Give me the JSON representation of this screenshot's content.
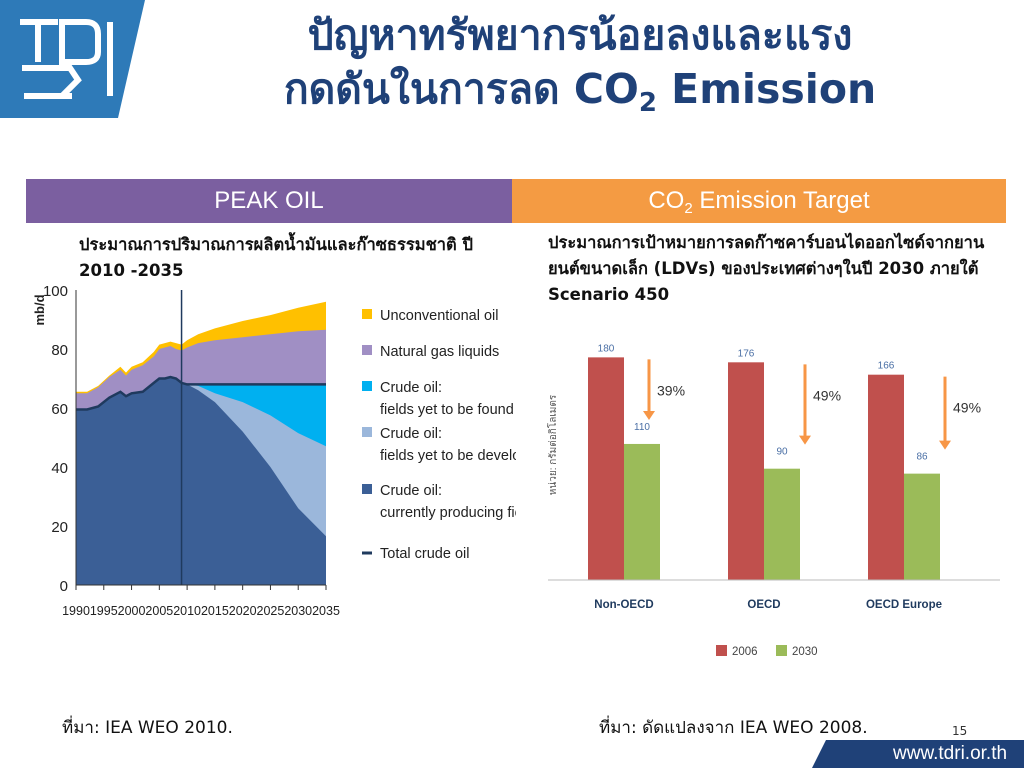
{
  "header": {
    "title_line1": "ปัญหาทรัพยากรน้อยลงและแรง",
    "title_line2_prefix": "กดดันในการลด CO",
    "title_line2_sub": "2",
    "title_line2_suffix": " Emission",
    "logo_text": "TDRI"
  },
  "panels": {
    "left": {
      "label": "PEAK OIL",
      "description": "ประมาณการปริมาณการผลิตน้ำมันและก๊าซธรรมชาติ ปี 2010 -2035",
      "source": "ที่มา: IEA WEO 2010."
    },
    "right": {
      "label_prefix": "CO",
      "label_sub": "2",
      "label_suffix": " Emission Target",
      "description": "ประมาณการเป้าหมายการลดก๊าซคาร์บอนไดออกไซด์จากยานยนต์ขนาดเล็ก (LDVs) ของประเทศต่างๆในปี 2030 ภายใต้ Scenario 450",
      "source": "ที่มา: ดัดแปลงจาก IEA WEO 2008."
    }
  },
  "footer": {
    "page_number": "15",
    "website": "www.tdri.or.th"
  },
  "colors": {
    "title": "#1f4178",
    "peak_oil_header": "#7b5fa0",
    "co2_header": "#f49b43",
    "unconventional": "#ffc000",
    "ngl": "#a08fc4",
    "yet_found": "#00b0f0",
    "yet_developed": "#9bb7db",
    "producing": "#3b5f96",
    "total": "#1f3a5e",
    "bar_2006": "#c0504d",
    "bar_2030": "#9bbb59",
    "arrow": "#f79646"
  },
  "chart_data": [
    {
      "type": "area",
      "ylabel": "mb/d",
      "ylim": [
        0,
        100
      ],
      "yticks": [
        "0",
        "20",
        "40",
        "60",
        "80",
        "100"
      ],
      "xticks": [
        "1990",
        "1995",
        "2000",
        "2005",
        "2010",
        "2015",
        "2020",
        "2025",
        "2030",
        "2035"
      ],
      "xlim": [
        1990,
        2035
      ],
      "x": [
        1990,
        1992,
        1994,
        1996,
        1998,
        1999,
        2000,
        2002,
        2004,
        2005,
        2006,
        2007,
        2008,
        2009,
        2010,
        2012,
        2015,
        2020,
        2025,
        2030,
        2035
      ],
      "series": [
        {
          "name": "Unconventional oil",
          "cumulative": [
            65.5,
            65.5,
            67.5,
            71,
            74,
            72,
            74,
            75.5,
            79,
            81.5,
            82,
            82.5,
            82,
            81.5,
            83,
            85,
            87,
            89.5,
            91.5,
            94,
            96
          ]
        },
        {
          "name": "Natural gas liquids",
          "cumulative": [
            65,
            65,
            67,
            70.5,
            73,
            71,
            73,
            74.5,
            77.5,
            80,
            80.5,
            81,
            80,
            79.5,
            80.5,
            82,
            83,
            84,
            85,
            86,
            86.5
          ]
        },
        {
          "name": "Crude oil: fields yet to be found",
          "cumulative": [
            59.5,
            59.5,
            60.5,
            63.5,
            65.5,
            64,
            65,
            65.5,
            68.5,
            70,
            70,
            70.5,
            70,
            68.5,
            68,
            68,
            68,
            68,
            68,
            68,
            68
          ]
        },
        {
          "name": "Crude oil: fields yet to be developed",
          "cumulative": [
            59.5,
            59.5,
            60.5,
            63.5,
            65.5,
            64,
            65,
            65.5,
            68.5,
            70,
            70,
            70.5,
            70,
            68.5,
            68,
            67.5,
            65,
            62,
            57.5,
            51.5,
            47
          ]
        },
        {
          "name": "Crude oil: currently producing fields",
          "cumulative": [
            59.5,
            59.5,
            60.5,
            63.5,
            65.5,
            64,
            65,
            65.5,
            68.5,
            70,
            70,
            70.5,
            70,
            68.5,
            68,
            66,
            62,
            52,
            40,
            26,
            16.5
          ]
        }
      ],
      "total_crude_oil": {
        "name": "Total crude oil",
        "values": [
          59.5,
          59.5,
          60.5,
          63.5,
          65.5,
          64,
          65,
          65.5,
          68.5,
          70,
          70,
          70.5,
          70,
          68.5,
          68,
          68,
          68,
          68,
          68,
          68,
          68
        ]
      },
      "legend": [
        {
          "key": "unconventional",
          "lines": [
            "Unconventional oil"
          ]
        },
        {
          "key": "ngl",
          "lines": [
            "Natural gas liquids"
          ]
        },
        {
          "key": "yet_found",
          "lines": [
            "Crude oil:",
            "fields yet to be found"
          ]
        },
        {
          "key": "yet_developed",
          "lines": [
            "Crude oil:",
            "fields yet to be developed"
          ]
        },
        {
          "key": "producing",
          "lines": [
            "Crude oil:",
            "currently producing fields"
          ]
        },
        {
          "key": "total",
          "lines": [
            "Total crude oil"
          ]
        }
      ],
      "legend_position": "right"
    },
    {
      "type": "bar",
      "ylabel": "หน่วย: กรัมต่อกิโลเมตร",
      "categories": [
        "Non-OECD",
        "OECD",
        "OECD Europe"
      ],
      "series": [
        {
          "name": "2006",
          "values": [
            180,
            176,
            166
          ]
        },
        {
          "name": "2030",
          "values": [
            110,
            90,
            86
          ]
        }
      ],
      "reductions": [
        "39%",
        "49%",
        "49%"
      ],
      "ylim": [
        0,
        190
      ],
      "legend_position": "bottom"
    }
  ]
}
